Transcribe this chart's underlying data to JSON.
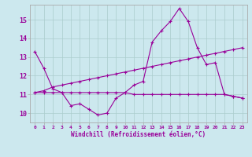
{
  "xlabel": "Windchill (Refroidissement éolien,°C)",
  "x": [
    0,
    1,
    2,
    3,
    4,
    5,
    6,
    7,
    8,
    9,
    10,
    11,
    12,
    13,
    14,
    15,
    16,
    17,
    18,
    19,
    20,
    21,
    22,
    23
  ],
  "line1": [
    13.3,
    12.4,
    11.3,
    11.1,
    10.4,
    10.5,
    10.2,
    9.9,
    10.0,
    10.8,
    11.1,
    11.5,
    11.7,
    13.8,
    14.4,
    14.9,
    15.6,
    14.9,
    13.5,
    12.6,
    12.7,
    11.0,
    10.9,
    10.8
  ],
  "line2": [
    11.1,
    11.1,
    11.1,
    11.1,
    11.1,
    11.1,
    11.1,
    11.1,
    11.1,
    11.1,
    11.1,
    11.0,
    11.0,
    11.0,
    11.0,
    11.0,
    11.0,
    11.0,
    11.0,
    11.0,
    11.0,
    11.0,
    10.9,
    10.8
  ],
  "line3": [
    11.1,
    11.2,
    11.4,
    11.5,
    11.6,
    11.7,
    11.8,
    11.9,
    12.0,
    12.1,
    12.2,
    12.3,
    12.4,
    12.5,
    12.6,
    12.7,
    12.8,
    12.9,
    13.0,
    13.1,
    13.2,
    13.3,
    13.4,
    13.5
  ],
  "ylim": [
    9.5,
    15.8
  ],
  "yticks": [
    10,
    11,
    12,
    13,
    14,
    15
  ],
  "bg_color": "#cce8ee",
  "line_color": "#990099",
  "grid_color": "#aacccc",
  "spine_color": "#aaaaaa"
}
